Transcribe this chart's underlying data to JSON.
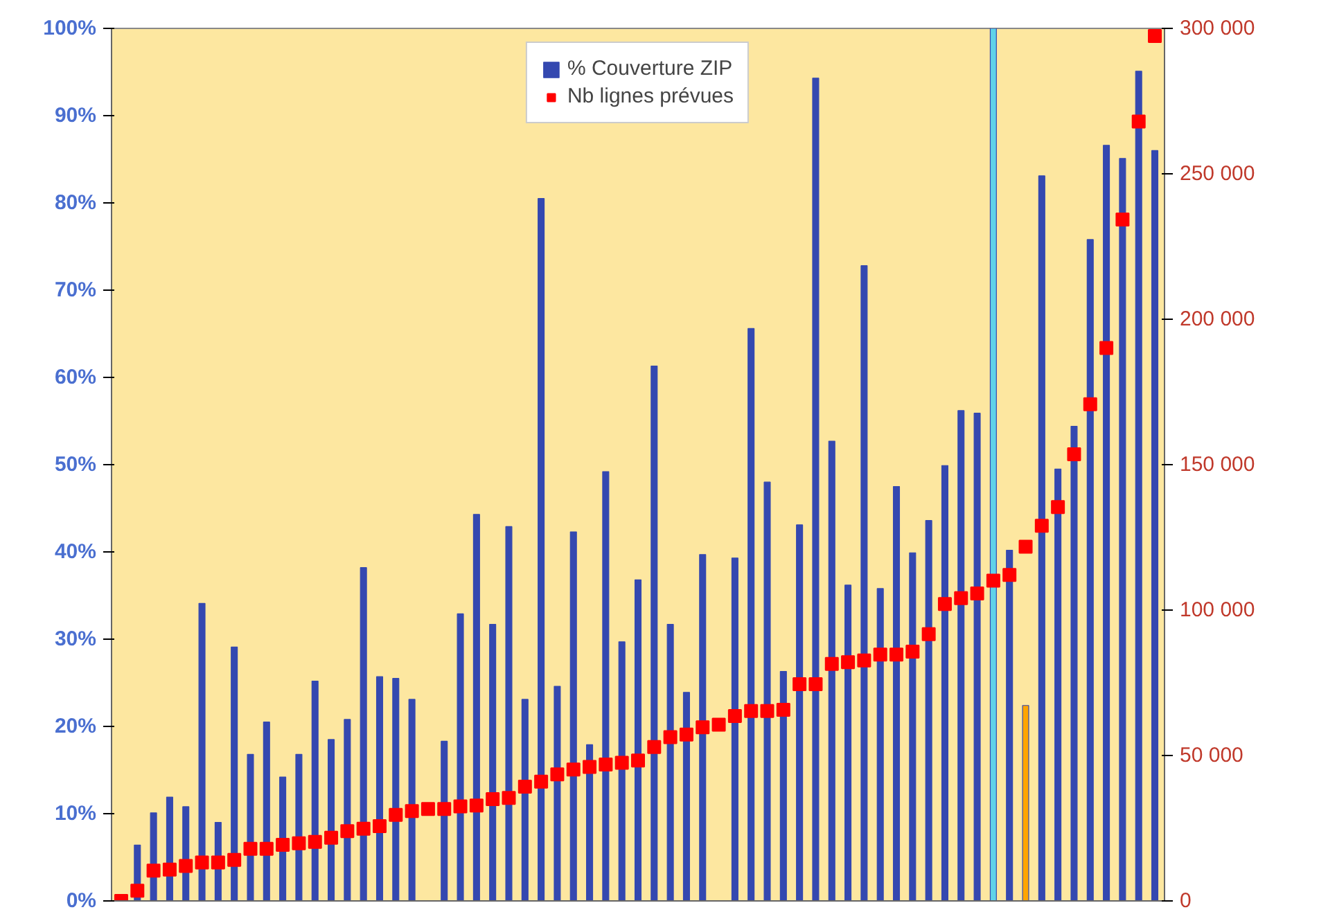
{
  "chart_data": {
    "type": "bar",
    "categories": [
      null,
      null,
      null,
      null,
      null,
      null,
      null,
      null,
      null,
      null,
      null,
      null,
      null,
      null,
      null,
      null,
      null,
      null,
      null,
      null,
      null,
      null,
      null,
      null,
      null,
      null,
      null,
      null,
      null,
      null,
      null,
      null,
      null,
      null,
      null,
      null,
      null,
      null,
      null,
      null,
      null,
      null,
      null,
      null,
      null,
      null,
      null,
      null,
      null,
      null,
      null,
      null,
      null,
      null,
      null,
      null,
      null,
      null,
      null,
      null,
      null,
      null,
      null,
      null,
      null
    ],
    "series": [
      {
        "name": "% Couverture ZIP",
        "color": "#3448b0",
        "colors": [
          "#3448b0",
          "#3448b0",
          "#3448b0",
          "#3448b0",
          "#3448b0",
          "#3448b0",
          "#3448b0",
          "#3448b0",
          "#3448b0",
          "#3448b0",
          "#3448b0",
          "#3448b0",
          "#3448b0",
          "#3448b0",
          "#3448b0",
          "#3448b0",
          "#3448b0",
          "#3448b0",
          "#3448b0",
          "#3448b0",
          "#3448b0",
          "#3448b0",
          "#3448b0",
          "#3448b0",
          "#3448b0",
          "#3448b0",
          "#3448b0",
          "#3448b0",
          "#3448b0",
          "#3448b0",
          "#3448b0",
          "#3448b0",
          "#3448b0",
          "#3448b0",
          "#3448b0",
          "#3448b0",
          "#3448b0",
          "#3448b0",
          "#3448b0",
          "#3448b0",
          "#3448b0",
          "#3448b0",
          "#3448b0",
          "#3448b0",
          "#3448b0",
          "#3448b0",
          "#3448b0",
          "#3448b0",
          "#3448b0",
          "#3448b0",
          "#3448b0",
          "#3448b0",
          "#3448b0",
          "#3448b0",
          "#5fd3e8",
          "#3448b0",
          "#ffa500",
          "#3448b0",
          "#3448b0",
          "#3448b0",
          "#3448b0",
          "#3448b0",
          "#3448b0",
          "#3448b0",
          "#3448b0"
        ],
        "values": [
          null,
          6.4,
          10.1,
          11.9,
          10.8,
          34.1,
          9.0,
          29.1,
          16.8,
          20.5,
          14.2,
          16.8,
          25.2,
          18.5,
          20.8,
          38.2,
          25.7,
          25.5,
          23.1,
          null,
          18.3,
          32.9,
          44.3,
          31.7,
          42.9,
          23.1,
          80.5,
          24.6,
          42.3,
          17.9,
          49.2,
          29.7,
          36.8,
          61.3,
          31.7,
          23.9,
          39.7,
          null,
          39.3,
          65.6,
          48.0,
          26.3,
          43.1,
          94.3,
          52.7,
          36.2,
          72.8,
          35.8,
          47.5,
          39.9,
          43.6,
          49.9,
          56.2,
          55.9,
          100,
          40.2,
          22.4,
          83.1,
          49.5,
          54.4,
          75.8,
          86.6,
          85.1,
          95.1,
          86.0
        ]
      },
      {
        "name": "Nb lignes prévues",
        "type": "scatter",
        "axis": "y2",
        "color": "#ff0000",
        "marker": "square",
        "values": [
          0,
          3500,
          10400,
          10800,
          12000,
          13200,
          13200,
          14100,
          17900,
          17900,
          19300,
          19800,
          20300,
          21700,
          24000,
          24800,
          25700,
          29600,
          30900,
          31600,
          31600,
          32500,
          32800,
          35000,
          35400,
          39300,
          41000,
          43500,
          45200,
          46100,
          46900,
          47500,
          48300,
          52900,
          56300,
          57200,
          59700,
          60600,
          63600,
          65300,
          65300,
          65700,
          74500,
          74500,
          81500,
          82100,
          82700,
          84700,
          84700,
          85700,
          91700,
          102100,
          104100,
          105700,
          110100,
          112100,
          121800,
          129000,
          135400,
          153600,
          170800,
          190100,
          234300,
          268000,
          297400
        ]
      }
    ],
    "ylim": [
      0,
      100
    ],
    "yticks": [
      {
        "value": 0,
        "label": "0%"
      },
      {
        "value": 10,
        "label": "10%"
      },
      {
        "value": 20,
        "label": "20%"
      },
      {
        "value": 30,
        "label": "30%"
      },
      {
        "value": 40,
        "label": "40%"
      },
      {
        "value": 50,
        "label": "50%"
      },
      {
        "value": 60,
        "label": "60%"
      },
      {
        "value": 70,
        "label": "70%"
      },
      {
        "value": 80,
        "label": "80%"
      },
      {
        "value": 90,
        "label": "90%"
      },
      {
        "value": 100,
        "label": "100%"
      }
    ],
    "y2lim": [
      0,
      300000
    ],
    "y2ticks": [
      0,
      {
        "value": 50000,
        "label": "50 000"
      },
      {
        "value": 100000,
        "label": "100 000"
      },
      {
        "value": 150000,
        "label": "150 000"
      },
      {
        "value": 200000,
        "label": "200 000"
      },
      {
        "value": 250000,
        "label": "250 000"
      },
      {
        "value": 300000,
        "label": "300 000"
      }
    ],
    "tick_labels": "y",
    "grid": false,
    "legend": "top"
  }
}
